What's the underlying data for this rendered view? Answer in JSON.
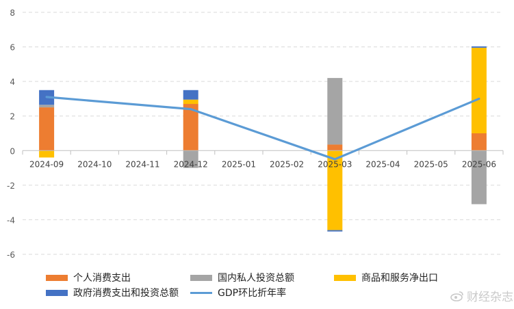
{
  "chart_data": {
    "type": "bar",
    "stacked": true,
    "categories": [
      "2024-09",
      "2024-10",
      "2024-11",
      "2024-12",
      "2025-01",
      "2025-02",
      "2025-03",
      "2025-04",
      "2025-05",
      "2025-06"
    ],
    "ylim": [
      -6,
      8
    ],
    "yticks": [
      -6,
      -4,
      -2,
      0,
      2,
      4,
      6,
      8
    ],
    "grid": true,
    "legend_position": "bottom",
    "series": [
      {
        "name": "个人消费支出",
        "color": "#ED7D31",
        "values": [
          2.5,
          null,
          null,
          2.7,
          null,
          null,
          0.35,
          null,
          null,
          1.0
        ]
      },
      {
        "name": "国内私人投资总额",
        "color": "#A5A5A5",
        "values": [
          0.15,
          null,
          null,
          -1.0,
          null,
          null,
          3.85,
          null,
          null,
          -3.1
        ]
      },
      {
        "name": "商品和服务净出口",
        "color": "#FFC000",
        "values": [
          -0.4,
          null,
          null,
          0.25,
          null,
          null,
          -4.6,
          null,
          null,
          4.95
        ]
      },
      {
        "name": "政府消费支出和投资总额",
        "color": "#4472C4",
        "values": [
          0.85,
          null,
          null,
          0.55,
          null,
          null,
          -0.08,
          null,
          null,
          0.08
        ]
      }
    ],
    "line": {
      "name": "GDP环比折年率",
      "color": "#5B9BD5",
      "values": [
        3.1,
        null,
        null,
        2.4,
        null,
        null,
        -0.5,
        null,
        null,
        3.0
      ]
    }
  },
  "watermark": {
    "text": "财经杂志"
  }
}
